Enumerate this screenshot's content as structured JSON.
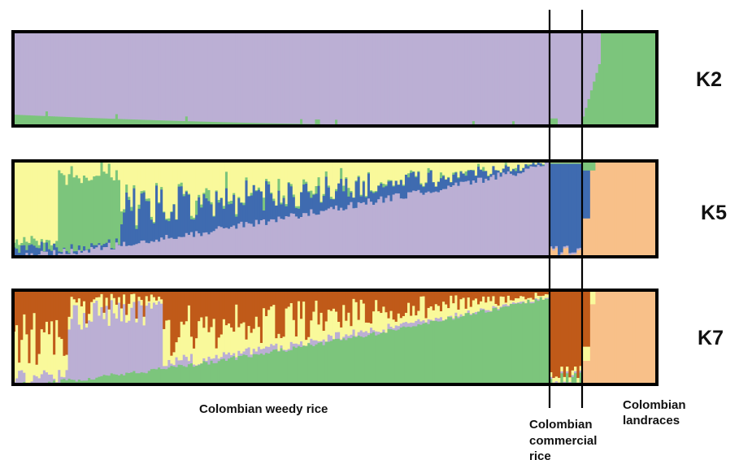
{
  "colors": {
    "purple": "#bbafd4",
    "green": "#7cc57c",
    "blue": "#3f6bb0",
    "yellow": "#f9f99b",
    "peach": "#f8c089",
    "orange": "#c05a19",
    "frame": "#000000"
  },
  "chart_data": {
    "type": "bar",
    "stacked": true,
    "normalized": true,
    "panels": [
      {
        "label": "K2",
        "series_colors": [
          "purple",
          "green"
        ],
        "groups": [
          {
            "count": 215,
            "profile": "k2_weedy"
          },
          {
            "count": 12,
            "profile": "k2_commercial"
          },
          {
            "count": 28,
            "profile": "k2_landrace"
          }
        ]
      },
      {
        "label": "K5",
        "series_colors": [
          "yellow",
          "green",
          "blue",
          "purple",
          "peach"
        ],
        "groups": [
          {
            "count": 215,
            "profile": "k5_weedy"
          },
          {
            "count": 12,
            "profile": "k5_commercial"
          },
          {
            "count": 28,
            "profile": "k5_landrace"
          }
        ]
      },
      {
        "label": "K7",
        "series_colors": [
          "orange",
          "yellow",
          "purple",
          "green",
          "peach"
        ],
        "groups": [
          {
            "count": 215,
            "profile": "k7_weedy"
          },
          {
            "count": 12,
            "profile": "k7_commercial"
          },
          {
            "count": 28,
            "profile": "k7_landrace"
          }
        ]
      }
    ],
    "groups": [
      {
        "lines": [
          "Colombian weedy rice"
        ]
      },
      {
        "lines": [
          "Colombian",
          "commercial",
          "rice"
        ]
      },
      {
        "lines": [
          "Colombian",
          "landraces"
        ]
      }
    ]
  }
}
